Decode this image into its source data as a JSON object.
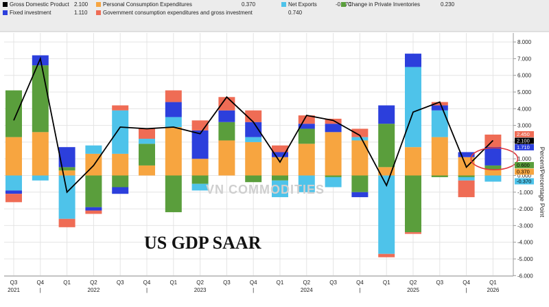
{
  "chart_data": {
    "type": "bar",
    "title": "US GDP SAAR",
    "ylabel": "Percent/Percentage Point",
    "ylim": [
      -6,
      9
    ],
    "yticks": [
      8,
      7,
      6,
      5,
      4,
      3,
      2,
      1,
      0,
      -1,
      -2,
      -3,
      -4,
      -5,
      -6
    ],
    "ytick_labels": [
      "8.000",
      "7.000",
      "6.000",
      "5.000",
      "4.000",
      "3.000",
      "2.000",
      "1.000",
      "0.000",
      "-1.000",
      "-2.000",
      "-3.000",
      "-4.000",
      "-5.000",
      "-6.000"
    ],
    "categories": [
      "Q3 2021",
      "Q4 2021",
      "Q1 2022",
      "Q2 2022",
      "Q3 2022",
      "Q4 2022",
      "Q1 2023",
      "Q2 2023",
      "Q3 2023",
      "Q4 2023",
      "Q1 2024",
      "Q2 2024",
      "Q3 2024",
      "Q4 2024",
      "Q1 2025",
      "Q2 2025",
      "Q3 2025",
      "Q4 2025",
      "Q1 2026"
    ],
    "x_quarter_labels": [
      "Q3",
      "Q4",
      "Q1",
      "Q2",
      "Q3",
      "Q4",
      "Q1",
      "Q2",
      "Q3",
      "Q4",
      "Q1",
      "Q2",
      "Q3",
      "Q4",
      "Q1",
      "Q2",
      "Q3",
      "Q4",
      "Q1"
    ],
    "x_year_labels": [
      {
        "index": 0,
        "label": "2021"
      },
      {
        "index": 3,
        "label": "2022"
      },
      {
        "index": 7,
        "label": "2023"
      },
      {
        "index": 11,
        "label": "2024"
      },
      {
        "index": 15,
        "label": "2025"
      },
      {
        "index": 18,
        "label": "2026"
      }
    ],
    "legend": [
      {
        "name": "Gross Domestic Product",
        "value": "2.100",
        "color": "#000000"
      },
      {
        "name": "Personal Consumption Expenditures",
        "value": "0.370",
        "color": "#f7a540"
      },
      {
        "name": "Net Exports",
        "value": "-0.370",
        "color": "#4ec3ea"
      },
      {
        "name": "Change in Private Inventories",
        "value": "0.230",
        "color": "#5a9e3c"
      },
      {
        "name": "Fixed investment",
        "value": "1.110",
        "color": "#2c3fdc"
      },
      {
        "name": "Government consumption expenditures and gross investment",
        "value": "0.740",
        "color": "#ef6c55"
      }
    ],
    "series": [
      {
        "name": "Personal Consumption Expenditures",
        "color": "#f7a540",
        "values": [
          2.3,
          2.6,
          0.3,
          1.3,
          1.3,
          0.6,
          2.9,
          1.0,
          2.1,
          2.0,
          1.1,
          1.9,
          2.6,
          2.1,
          0.5,
          1.7,
          2.3,
          1.1,
          0.37
        ]
      },
      {
        "name": "Change in Private Inventories",
        "color": "#5a9e3c",
        "values": [
          2.8,
          4.0,
          0.2,
          -1.9,
          -0.7,
          1.3,
          -2.2,
          -0.5,
          1.1,
          -0.4,
          -0.3,
          0.9,
          -0.1,
          -1.0,
          2.6,
          -3.4,
          -0.1,
          -0.1,
          0.23
        ]
      },
      {
        "name": "Net Exports",
        "color": "#4ec3ea",
        "values": [
          -0.9,
          -0.3,
          -2.6,
          0.5,
          2.6,
          0.3,
          0.6,
          -0.4,
          0.0,
          0.3,
          -1.0,
          -1.0,
          -0.6,
          0.2,
          -4.7,
          4.8,
          1.6,
          -0.2,
          -0.37
        ]
      },
      {
        "name": "Fixed investment",
        "color": "#2c3fdc",
        "values": [
          -0.2,
          0.6,
          1.2,
          -0.2,
          -0.4,
          0.0,
          0.9,
          1.7,
          0.7,
          0.9,
          0.3,
          0.3,
          0.5,
          -0.3,
          1.1,
          0.8,
          0.3,
          0.3,
          1.11
        ]
      },
      {
        "name": "Government consumption expenditures and gross investment",
        "color": "#ef6c55",
        "values": [
          -0.5,
          0.0,
          -0.5,
          -0.2,
          0.3,
          0.6,
          0.7,
          0.6,
          0.8,
          0.7,
          0.4,
          0.5,
          0.3,
          0.5,
          -0.2,
          -0.1,
          0.2,
          -1.0,
          0.74
        ]
      }
    ],
    "gdp_line": {
      "name": "Gross Domestic Product",
      "color": "#000000",
      "values": [
        3.3,
        7.0,
        -1.0,
        0.6,
        2.9,
        2.8,
        2.9,
        2.5,
        4.7,
        3.2,
        0.8,
        3.6,
        3.3,
        2.4,
        -0.6,
        3.8,
        4.4,
        0.5,
        2.1
      ]
    },
    "right_badges": [
      {
        "value": "2.450",
        "bg": "#ef6c55",
        "fg": "#ffffff",
        "y": 2.45
      },
      {
        "value": "2.100",
        "bg": "#000000",
        "fg": "#ffffff",
        "y": 2.1
      },
      {
        "value": "1.710",
        "bg": "#2c3fdc",
        "fg": "#ffffff",
        "y": 1.71
      },
      {
        "value": "0.600",
        "bg": "#5a9e3c",
        "fg": "#000000",
        "y": 0.6
      },
      {
        "value": "0.370",
        "bg": "#f7a540",
        "fg": "#000000",
        "y": 0.37
      },
      {
        "value": "-0.370",
        "bg": "#4ec3ea",
        "fg": "#000000",
        "y": -0.37
      }
    ],
    "watermark": "VN COMMODITIES",
    "grid": true,
    "legend_position": "top"
  }
}
